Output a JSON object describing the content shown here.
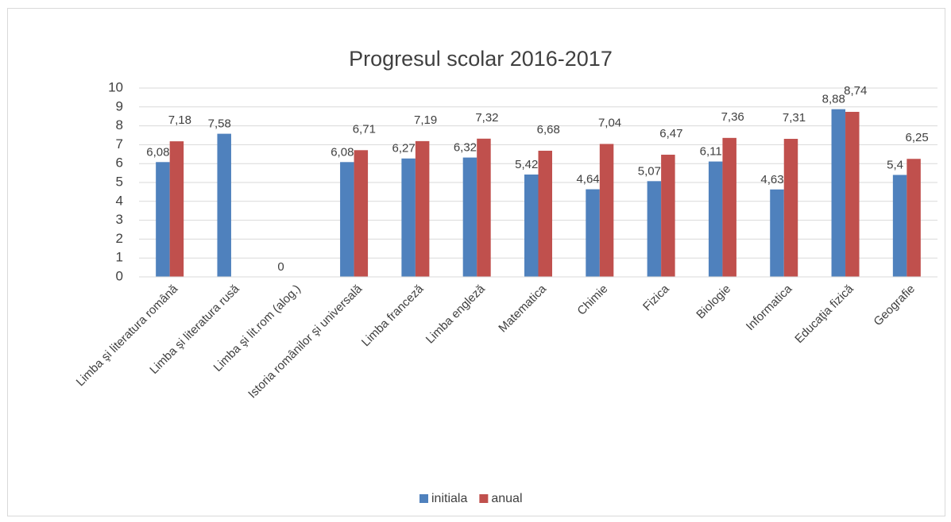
{
  "chart_data": {
    "type": "bar",
    "title": "Progresul scolar 2016-2017",
    "categories": [
      "Limba şi literatura română",
      "Limba şi literatura rusă",
      "Limba şi lit.rom (alog.)",
      "Istoria românilor şi universală",
      "Limba franceză",
      "Limba engleză",
      "Matematica",
      "Chimie",
      "Fizica",
      "Biologie",
      "Informatica",
      "Educaţia fizică",
      "Geografie"
    ],
    "series": [
      {
        "name": "initiala",
        "color": "#4f81bd",
        "values": [
          6.08,
          7.58,
          0,
          6.08,
          6.27,
          6.32,
          5.42,
          4.64,
          5.07,
          6.11,
          4.63,
          8.88,
          5.4
        ],
        "value_labels": [
          "6,08",
          "7,58",
          "0",
          "6,08",
          "6,27",
          "6,32",
          "5,42",
          "4,64",
          "5,07",
          "6,11",
          "4,63",
          "8,88",
          "5,4"
        ]
      },
      {
        "name": "anual",
        "color": "#c0504d",
        "values": [
          7.18,
          null,
          null,
          6.71,
          7.19,
          7.32,
          6.68,
          7.04,
          6.47,
          7.36,
          7.31,
          8.74,
          6.25
        ],
        "value_labels": [
          "7,18",
          null,
          null,
          "6,71",
          "7,19",
          "7,32",
          "6,68",
          "7,04",
          "6,47",
          "7,36",
          "7,31",
          "8,74",
          "6,25"
        ]
      }
    ],
    "ylim": [
      0,
      10
    ],
    "yticks": [
      0,
      1,
      2,
      3,
      4,
      5,
      6,
      7,
      8,
      9,
      10
    ],
    "grid": true,
    "legend": "bottom"
  }
}
